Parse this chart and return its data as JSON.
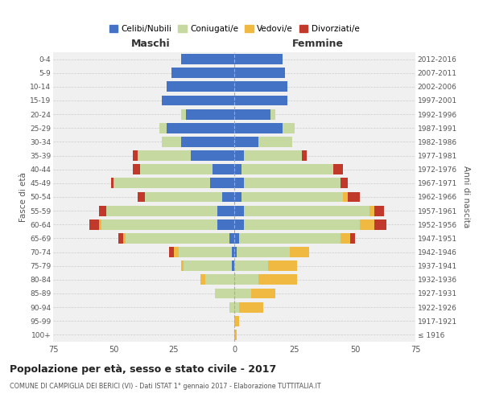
{
  "age_groups": [
    "100+",
    "95-99",
    "90-94",
    "85-89",
    "80-84",
    "75-79",
    "70-74",
    "65-69",
    "60-64",
    "55-59",
    "50-54",
    "45-49",
    "40-44",
    "35-39",
    "30-34",
    "25-29",
    "20-24",
    "15-19",
    "10-14",
    "5-9",
    "0-4"
  ],
  "birth_years": [
    "≤ 1916",
    "1917-1921",
    "1922-1926",
    "1927-1931",
    "1932-1936",
    "1937-1941",
    "1942-1946",
    "1947-1951",
    "1952-1956",
    "1957-1961",
    "1962-1966",
    "1967-1971",
    "1972-1976",
    "1977-1981",
    "1982-1986",
    "1987-1991",
    "1992-1996",
    "1997-2001",
    "2002-2006",
    "2007-2011",
    "2012-2016"
  ],
  "male": {
    "celibi": [
      0,
      0,
      0,
      0,
      0,
      1,
      1,
      2,
      7,
      7,
      5,
      10,
      9,
      18,
      22,
      28,
      20,
      30,
      28,
      26,
      22
    ],
    "coniugati": [
      0,
      0,
      2,
      8,
      12,
      20,
      22,
      43,
      48,
      46,
      32,
      40,
      30,
      22,
      8,
      3,
      2,
      0,
      0,
      0,
      0
    ],
    "vedovi": [
      0,
      0,
      0,
      0,
      2,
      1,
      2,
      1,
      1,
      0,
      0,
      0,
      0,
      0,
      0,
      0,
      0,
      0,
      0,
      0,
      0
    ],
    "divorziati": [
      0,
      0,
      0,
      0,
      0,
      0,
      2,
      2,
      4,
      3,
      3,
      1,
      3,
      2,
      0,
      0,
      0,
      0,
      0,
      0,
      0
    ]
  },
  "female": {
    "nubili": [
      0,
      0,
      0,
      0,
      0,
      0,
      1,
      2,
      4,
      4,
      3,
      4,
      3,
      4,
      10,
      20,
      15,
      22,
      22,
      21,
      20
    ],
    "coniugate": [
      0,
      0,
      2,
      7,
      10,
      14,
      22,
      42,
      48,
      52,
      42,
      40,
      38,
      24,
      14,
      5,
      2,
      0,
      0,
      0,
      0
    ],
    "vedove": [
      1,
      2,
      10,
      10,
      16,
      12,
      8,
      4,
      6,
      2,
      2,
      0,
      0,
      0,
      0,
      0,
      0,
      0,
      0,
      0,
      0
    ],
    "divorziate": [
      0,
      0,
      0,
      0,
      0,
      0,
      0,
      2,
      5,
      4,
      5,
      3,
      4,
      2,
      0,
      0,
      0,
      0,
      0,
      0,
      0
    ]
  },
  "colors": {
    "celibi": "#4472c4",
    "coniugati": "#c5d9a0",
    "vedovi": "#f0b942",
    "divorziati": "#c0392b"
  },
  "xlim": 75,
  "title": "Popolazione per età, sesso e stato civile - 2017",
  "subtitle": "COMUNE DI CAMPIGLIA DEI BERICI (VI) - Dati ISTAT 1° gennaio 2017 - Elaborazione TUTTITALIA.IT",
  "ylabel_left": "Fasce di età",
  "ylabel_right": "Anni di nascita",
  "label_maschi": "Maschi",
  "label_femmine": "Femmine",
  "legend_labels": [
    "Celibi/Nubili",
    "Coniugati/e",
    "Vedovi/e",
    "Divorziati/e"
  ],
  "bg_color": "#ffffff",
  "grid_color": "#cccccc",
  "bar_height": 0.75
}
